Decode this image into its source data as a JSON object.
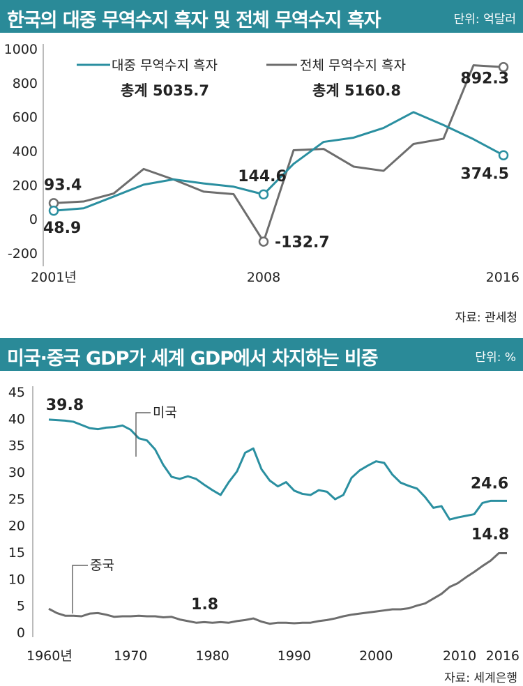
{
  "chart1": {
    "header": {
      "title": "한국의 대중 무역수지 흑자 및 전체 무역수지 흑자",
      "unit": "단위: 억달러"
    },
    "source": "자료: 관세청",
    "totals": {
      "china": "총계 5035.7",
      "total": "총계 5160.8"
    },
    "colors": {
      "china": "#2a8fa0",
      "total": "#6d6d6d"
    }
  },
  "chart2": {
    "header": {
      "title": "미국·중국 GDP가 세계 GDP에서 차지하는 비중",
      "unit": "단위: %"
    },
    "source": "자료: 세계은행",
    "colors": {
      "us": "#2a8fa0",
      "china": "#6d6d6d"
    }
  },
  "chart_data": [
    {
      "type": "line",
      "title": "한국의 대중 무역수지 흑자 및 전체 무역수지 흑자",
      "unit": "억달러",
      "ylim": [
        -200,
        1000
      ],
      "yticks": [
        "1000",
        "800",
        "600",
        "400",
        "200",
        "0",
        "-200"
      ],
      "yticks_values": [
        1000,
        800,
        600,
        400,
        200,
        0,
        -200
      ],
      "x": [
        2001,
        2002,
        2003,
        2004,
        2005,
        2006,
        2007,
        2008,
        2009,
        2010,
        2011,
        2012,
        2013,
        2014,
        2015,
        2016
      ],
      "xlim": [
        2001,
        2016
      ],
      "xticks": [
        {
          "x": 2001,
          "label": "2001년"
        },
        {
          "x": 2008,
          "label": "2008"
        },
        {
          "x": 2016,
          "label": "2016"
        }
      ],
      "series": [
        {
          "name": "대중 무역수지 흑자",
          "key": "china",
          "values": [
            48.9,
            63,
            132,
            202,
            233,
            209,
            190,
            144.6,
            324,
            453,
            478,
            535,
            628,
            552,
            469,
            374.5
          ]
        },
        {
          "name": "전체 무역수지 흑자",
          "key": "total",
          "values": [
            93.4,
            103,
            150,
            294,
            232,
            161,
            146,
            -132.7,
            404,
            412,
            308,
            283,
            441,
            472,
            903,
            892.3
          ]
        }
      ],
      "annotations": [
        {
          "series": "total",
          "x": 2001,
          "text": "93.4"
        },
        {
          "series": "china",
          "x": 2001,
          "text": "48.9"
        },
        {
          "series": "china",
          "x": 2008,
          "text": "144.6"
        },
        {
          "series": "total",
          "x": 2008,
          "text": "-132.7"
        },
        {
          "series": "total",
          "x": 2016,
          "text": "892.3"
        },
        {
          "series": "china",
          "x": 2016,
          "text": "374.5"
        }
      ],
      "legend": "top"
    },
    {
      "type": "line",
      "title": "미국·중국 GDP가 세계 GDP에서 차지하는 비중",
      "unit": "%",
      "ylim": [
        0,
        45
      ],
      "yticks": [
        "45",
        "40",
        "35",
        "30",
        "25",
        "20",
        "15",
        "10",
        "5",
        "0"
      ],
      "yticks_values": [
        45,
        40,
        35,
        30,
        25,
        20,
        15,
        10,
        5,
        0
      ],
      "xlim": [
        1960,
        2016
      ],
      "xticks": [
        {
          "x": 1960,
          "label": "1960년"
        },
        {
          "x": 1970,
          "label": "1970"
        },
        {
          "x": 1980,
          "label": "1980"
        },
        {
          "x": 1990,
          "label": "1990"
        },
        {
          "x": 2000,
          "label": "2000"
        },
        {
          "x": 2010,
          "label": "2010"
        },
        {
          "x": 2016,
          "label": "2016"
        }
      ],
      "series": [
        {
          "name": "미국",
          "key": "us",
          "x": [
            1960,
            1961,
            1962,
            1963,
            1964,
            1965,
            1966,
            1967,
            1968,
            1969,
            1970,
            1971,
            1972,
            1973,
            1974,
            1975,
            1976,
            1977,
            1978,
            1979,
            1980,
            1981,
            1982,
            1983,
            1984,
            1985,
            1986,
            1987,
            1988,
            1989,
            1990,
            1991,
            1992,
            1993,
            1994,
            1995,
            1996,
            1997,
            1998,
            1999,
            2000,
            2001,
            2002,
            2003,
            2004,
            2005,
            2006,
            2007,
            2008,
            2009,
            2010,
            2011,
            2012,
            2013,
            2014,
            2015,
            2016
          ],
          "values": [
            39.8,
            39.7,
            39.6,
            39.4,
            38.8,
            38.2,
            38.0,
            38.3,
            38.4,
            38.7,
            37.9,
            36.3,
            35.9,
            34.2,
            31.3,
            29.1,
            28.7,
            29.2,
            28.7,
            27.6,
            26.6,
            25.7,
            28.1,
            30.1,
            33.6,
            34.4,
            30.5,
            28.4,
            27.3,
            28.1,
            26.5,
            25.9,
            25.7,
            26.6,
            26.3,
            24.9,
            25.7,
            28.9,
            30.3,
            31.2,
            32.0,
            31.7,
            29.5,
            28.0,
            27.4,
            26.9,
            25.3,
            23.3,
            23.6,
            21.1,
            21.5,
            21.8,
            22.1,
            24.2,
            24.6,
            24.6,
            24.6
          ]
        },
        {
          "name": "중국",
          "key": "china",
          "x": [
            1960,
            1961,
            1962,
            1963,
            1964,
            1965,
            1966,
            1967,
            1968,
            1969,
            1970,
            1971,
            1972,
            1973,
            1974,
            1975,
            1976,
            1977,
            1978,
            1979,
            1980,
            1981,
            1982,
            1983,
            1984,
            1985,
            1986,
            1987,
            1988,
            1989,
            1990,
            1991,
            1992,
            1993,
            1994,
            1995,
            1996,
            1997,
            1998,
            1999,
            2000,
            2001,
            2002,
            2003,
            2004,
            2005,
            2006,
            2007,
            2008,
            2009,
            2010,
            2011,
            2012,
            2013,
            2014,
            2015,
            2016
          ],
          "values": [
            4.4,
            3.6,
            3.1,
            3.1,
            3.0,
            3.5,
            3.6,
            3.3,
            2.9,
            3.0,
            3.0,
            3.1,
            3.0,
            3.0,
            2.8,
            2.9,
            2.4,
            2.1,
            1.8,
            1.9,
            1.8,
            1.9,
            1.8,
            2.1,
            2.3,
            2.6,
            2.0,
            1.6,
            1.8,
            1.8,
            1.7,
            1.8,
            1.8,
            2.1,
            2.3,
            2.6,
            3.0,
            3.3,
            3.5,
            3.7,
            3.9,
            4.1,
            4.3,
            4.3,
            4.5,
            5.0,
            5.4,
            6.3,
            7.2,
            8.5,
            9.2,
            10.3,
            11.3,
            12.4,
            13.4,
            14.8,
            14.8
          ]
        }
      ],
      "annotations": [
        {
          "series": "us",
          "x": 1960,
          "text": "39.8"
        },
        {
          "series": "china",
          "x": 1980,
          "text": "1.8"
        },
        {
          "series": "us",
          "x": 2016,
          "text": "24.6"
        },
        {
          "series": "china",
          "x": 2016,
          "text": "14.8"
        }
      ]
    }
  ]
}
